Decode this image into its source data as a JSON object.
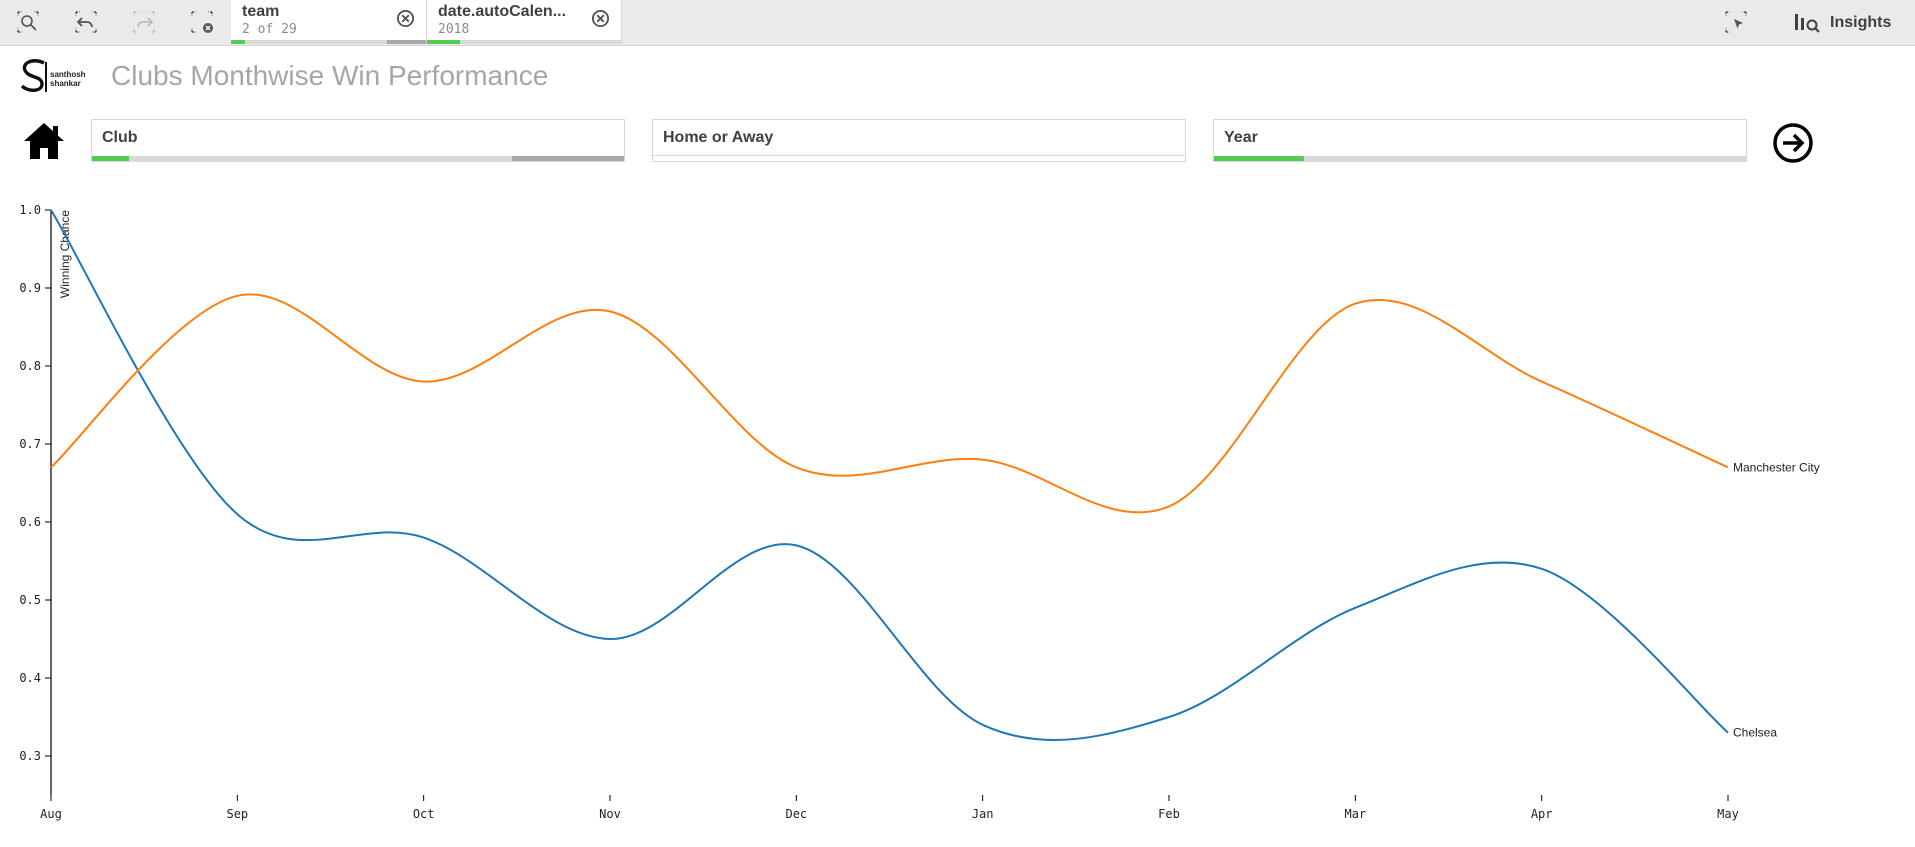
{
  "toolbar": {
    "tools": [
      {
        "name": "smart-search-icon"
      },
      {
        "name": "step-back-icon"
      },
      {
        "name": "step-forward-icon"
      },
      {
        "name": "clear-selections-icon"
      }
    ],
    "selections": [
      {
        "title": "team",
        "sub": "2 of 29",
        "green_fraction": 0.07,
        "grey_fraction": 0.2
      },
      {
        "title": "date.autoCalen...",
        "sub": "2018",
        "green_fraction": 0.17,
        "grey_fraction": 0
      }
    ],
    "insights_label": "Insights"
  },
  "sheet": {
    "logo_text_line1": "santhosh",
    "logo_text_line2": "shankar",
    "title": "Clubs Monthwise Win Performance"
  },
  "filters": [
    {
      "label": "Club",
      "green_fraction": 0.07,
      "grey_fraction": 0.21
    },
    {
      "label": "Home or Away",
      "green_fraction": 0,
      "grey_fraction": 0
    },
    {
      "label": "Year",
      "green_fraction": 0.17,
      "grey_fraction": 0
    }
  ],
  "colors": {
    "accent_green": "#52cc52",
    "chelsea": "#1f77b4",
    "man_city": "#ff7f0e"
  },
  "chart_data": {
    "type": "line",
    "title": "",
    "xlabel": "",
    "ylabel": "Winning Chance",
    "categories": [
      "Aug",
      "Sep",
      "Oct",
      "Nov",
      "Dec",
      "Jan",
      "Feb",
      "Mar",
      "Apr",
      "May"
    ],
    "ylim": [
      0.25,
      1.0
    ],
    "yticks": [
      "0.3",
      "0.4",
      "0.5",
      "0.6",
      "0.7",
      "0.8",
      "0.9",
      "1.0"
    ],
    "curve": "smooth",
    "grid": false,
    "series": [
      {
        "name": "Chelsea",
        "color": "#1f77b4",
        "values": [
          1.0,
          0.61,
          0.58,
          0.45,
          0.57,
          0.34,
          0.35,
          0.49,
          0.54,
          0.33
        ]
      },
      {
        "name": "Manchester City",
        "color": "#ff7f0e",
        "values": [
          0.67,
          0.89,
          0.78,
          0.87,
          0.67,
          0.68,
          0.62,
          0.88,
          0.78,
          0.67
        ]
      }
    ]
  }
}
